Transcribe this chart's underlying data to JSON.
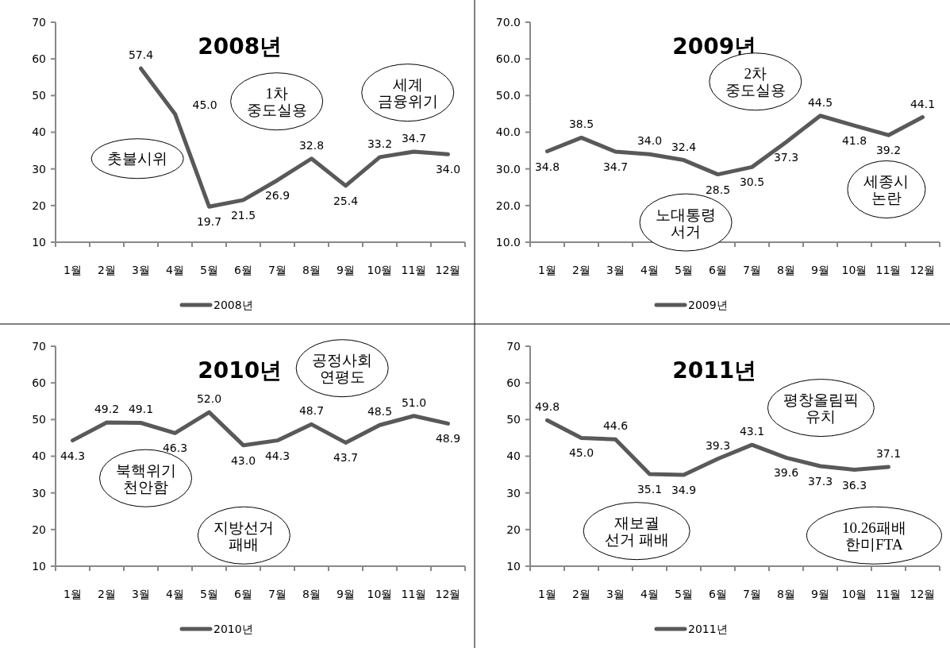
{
  "chart_data": [
    {
      "type": "line",
      "title": "2008년",
      "categories": [
        "1월",
        "2월",
        "3월",
        "4월",
        "5월",
        "6월",
        "7월",
        "8월",
        "9월",
        "10월",
        "11월",
        "12월"
      ],
      "series": [
        {
          "name": "2008년",
          "color": "#595959",
          "values": [
            null,
            null,
            57.4,
            45.0,
            19.7,
            21.5,
            26.9,
            32.8,
            25.4,
            33.2,
            34.7,
            34.0
          ],
          "value_labels": [
            null,
            null,
            "57.4",
            "45.0",
            "19.7",
            "21.5",
            "26.9",
            "32.8",
            "25.4",
            "33.2",
            "34.7",
            "34.0"
          ]
        }
      ],
      "ylim": [
        10,
        70
      ],
      "yticks": [
        10,
        20,
        30,
        40,
        50,
        60,
        70
      ],
      "grid": false,
      "legend": "bottom",
      "marker": "none",
      "annotations": [
        "촛불시위",
        "1차\n중도실용",
        "세계\n금융위기"
      ]
    },
    {
      "type": "line",
      "title": "2009년",
      "categories": [
        "1월",
        "2월",
        "3월",
        "4월",
        "5월",
        "6월",
        "7월",
        "8월",
        "9월",
        "10월",
        "11월",
        "12월"
      ],
      "series": [
        {
          "name": "2009년",
          "color": "#595959",
          "values": [
            34.8,
            38.5,
            34.7,
            34.0,
            32.4,
            28.5,
            30.5,
            37.3,
            44.5,
            41.8,
            39.2,
            44.1
          ],
          "value_labels": [
            "34.8",
            "38.5",
            "34.7",
            "34.0",
            "32.4",
            "28.5",
            "30.5",
            "37.3",
            "44.5",
            "41.8",
            "39.2",
            "44.1"
          ]
        }
      ],
      "ylim": [
        10,
        70
      ],
      "yticks": [
        {
          "value": 10,
          "label": "10.0"
        },
        {
          "value": 20,
          "label": "20.0"
        },
        {
          "value": 30,
          "label": "30.0"
        },
        {
          "value": 40,
          "label": "40.0"
        },
        {
          "value": 50,
          "label": "50.0"
        },
        {
          "value": 60,
          "label": "60.0"
        },
        {
          "value": 70,
          "label": "70.0"
        }
      ],
      "grid": false,
      "legend": "bottom",
      "marker": "none",
      "annotations": [
        "2차\n중도실용",
        "노대통령\n서거",
        "세종시\n논란"
      ]
    },
    {
      "type": "line",
      "title": "2010년",
      "categories": [
        "1월",
        "2월",
        "3월",
        "4월",
        "5월",
        "6월",
        "7월",
        "8월",
        "9월",
        "10월",
        "11월",
        "12월"
      ],
      "series": [
        {
          "name": "2010년",
          "color": "#595959",
          "values": [
            44.3,
            49.2,
            49.1,
            46.3,
            52.0,
            43.0,
            44.3,
            48.7,
            43.7,
            48.5,
            51.0,
            48.9
          ],
          "value_labels": [
            "44.3",
            "49.2",
            "49.1",
            "46.3",
            "52.0",
            "43.0",
            "44.3",
            "48.7",
            "43.7",
            "48.5",
            "51.0",
            "48.9"
          ]
        }
      ],
      "ylim": [
        10,
        70
      ],
      "yticks": [
        10,
        20,
        30,
        40,
        50,
        60,
        70
      ],
      "grid": false,
      "legend": "bottom",
      "marker": "none",
      "annotations": [
        "공정사회\n연평도",
        "북핵위기\n천안함",
        "지방선거\n패배"
      ]
    },
    {
      "type": "line",
      "title": "2011년",
      "categories": [
        "1월",
        "2월",
        "3월",
        "4월",
        "5월",
        "6월",
        "7월",
        "8월",
        "9월",
        "10월",
        "11월",
        "12월"
      ],
      "series": [
        {
          "name": "2011년",
          "color": "#595959",
          "values": [
            49.8,
            45.0,
            44.6,
            35.1,
            34.9,
            39.3,
            43.1,
            39.6,
            37.3,
            36.3,
            37.1,
            null
          ],
          "value_labels": [
            "49.8",
            "45.0",
            "44.6",
            "35.1",
            "34.9",
            "39.3",
            "43.1",
            "39.6",
            "37.3",
            "36.3",
            "37.1",
            null
          ]
        }
      ],
      "ylim": [
        10,
        70
      ],
      "yticks": [
        10,
        20,
        30,
        40,
        50,
        60,
        70
      ],
      "grid": false,
      "legend": "bottom",
      "marker": "none",
      "annotations": [
        "평창올림픽\n유치",
        "재보궐\n선거 패배",
        "10.26패배\n한미FTA"
      ]
    }
  ]
}
